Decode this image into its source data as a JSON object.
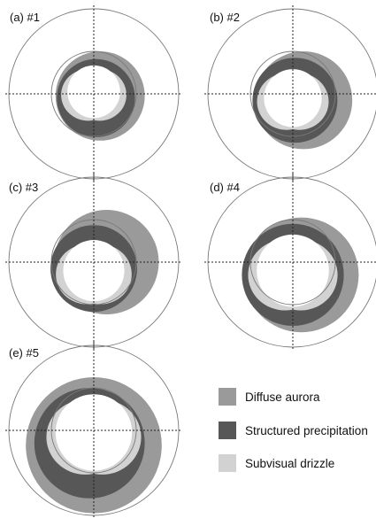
{
  "panels": [
    {
      "id": "a",
      "label": "(a)  #1",
      "diffuse": {
        "ox": 1.5,
        "oy": 0.5,
        "r": 10.5
      },
      "structured": {
        "ox": 0.5,
        "oy": 1,
        "r": 9.2
      },
      "inner": {
        "ox": 0,
        "oy": -0.5,
        "r": 6.2
      }
    },
    {
      "id": "b",
      "label": "(b)  #2",
      "diffuse": {
        "ox": 2.5,
        "oy": 1.5,
        "r": 11.5
      },
      "structured": {
        "ox": 0.5,
        "oy": 1.5,
        "r": 10
      },
      "inner": {
        "ox": 0,
        "oy": 1,
        "r": 6.8
      }
    },
    {
      "id": "c",
      "label": "(c)  #3",
      "diffuse": {
        "ox": 3,
        "oy": 0,
        "r": 12.3
      },
      "structured": {
        "ox": 0,
        "oy": 1.5,
        "r": 10.2
      },
      "inner": {
        "ox": 0,
        "oy": 2,
        "r": 7.2
      }
    },
    {
      "id": "d",
      "label": "(d)  #4",
      "diffuse": {
        "ox": 2,
        "oy": 3,
        "r": 13.5
      },
      "structured": {
        "ox": 0,
        "oy": 3,
        "r": 12
      },
      "inner": {
        "ox": 0,
        "oy": 2,
        "r": 8.5
      }
    },
    {
      "id": "e",
      "label": "(e)  #5",
      "diffuse": {
        "ox": 0,
        "oy": 3.5,
        "r": 16
      },
      "structured": {
        "ox": -1,
        "oy": 3,
        "r": 13
      },
      "inner": {
        "ox": 0,
        "oy": 0.5,
        "r": 9
      }
    }
  ],
  "legend": [
    {
      "label": "Diffuse aurora",
      "color": "#9a9a9a"
    },
    {
      "label": "Structured precipitation",
      "color": "#575757"
    },
    {
      "label": "Subvisual drizzle",
      "color": "#d2d2d2"
    }
  ],
  "colors": {
    "diffuse": "#9a9a9a",
    "structured": "#575757",
    "drizzle": "#d2d2d2",
    "circle": "#7a7a7a",
    "axis": "#222222"
  },
  "polar_rings_deg": [
    10,
    20
  ]
}
